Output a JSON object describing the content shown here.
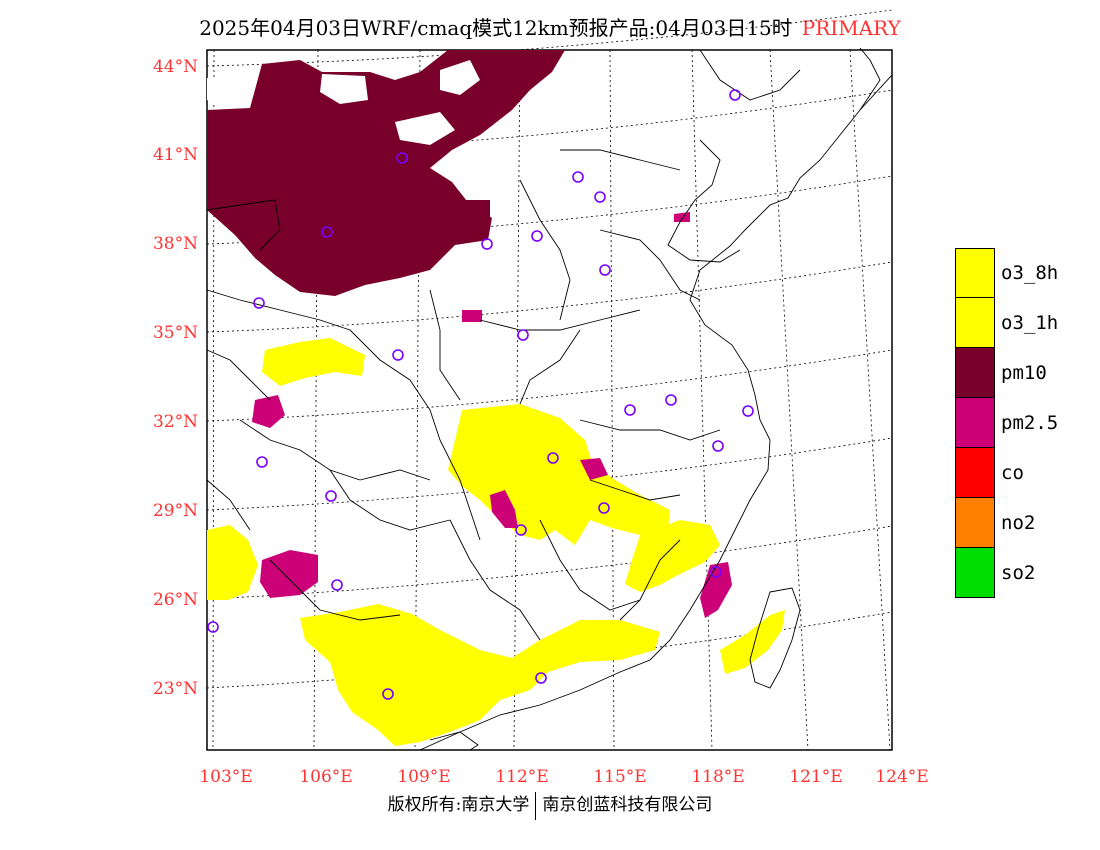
{
  "header": {
    "title": "2025年04月03日WRF/cmaq模式12km预报产品:04月03日15时",
    "primary_tag": "PRIMARY"
  },
  "map": {
    "lat_labels": [
      "44°N",
      "41°N",
      "38°N",
      "35°N",
      "32°N",
      "29°N",
      "26°N",
      "23°N"
    ],
    "lon_labels": [
      "103°E",
      "106°E",
      "109°E",
      "112°E",
      "115°E",
      "118°E",
      "121°E",
      "124°E"
    ]
  },
  "legend": {
    "items": [
      {
        "label": "o3_8h",
        "color": "#ffff00"
      },
      {
        "label": "o3_1h",
        "color": "#ffff00"
      },
      {
        "label": "pm10",
        "color": "#78002a"
      },
      {
        "label": "pm2.5",
        "color": "#cc0077"
      },
      {
        "label": "co",
        "color": "#ff0000"
      },
      {
        "label": "no2",
        "color": "#ff8000"
      },
      {
        "label": "so2",
        "color": "#00dd00"
      }
    ]
  },
  "footer": {
    "left": "版权所有:南京大学",
    "right": "南京创蓝科技有限公司"
  },
  "colors": {
    "label": "#ff3333",
    "station_circle": "#7700ff",
    "o3": "#ffff00",
    "pm10": "#78002a",
    "pm25": "#cc0077"
  }
}
